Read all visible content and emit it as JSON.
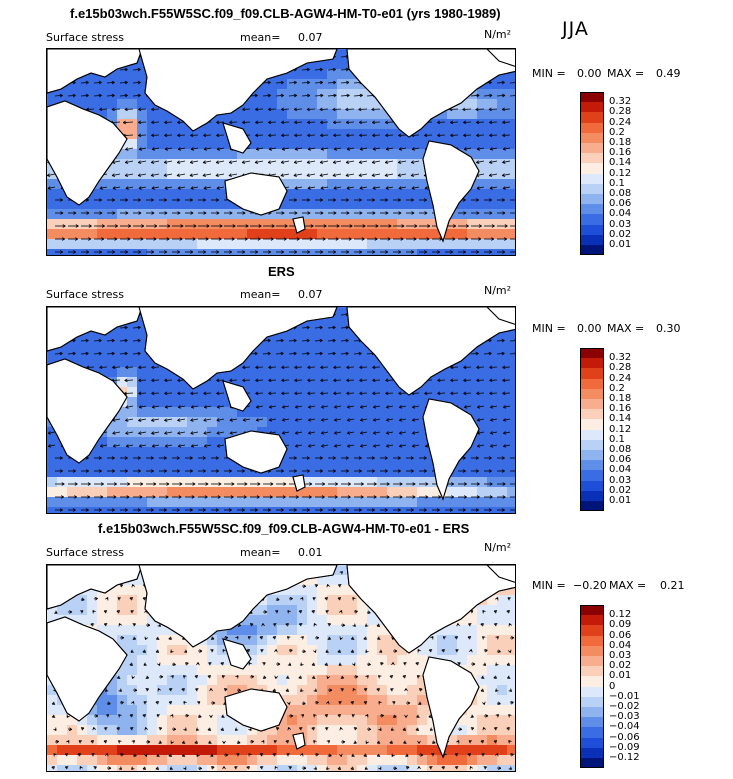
{
  "season": "JJA",
  "colors": {
    "ocean_low": "#1a3fd6",
    "ocean_high": "#cc2a10",
    "land": "#ffffff",
    "coast": "#000000"
  },
  "panels": [
    {
      "title": "f.e15b03wch.F55W5SC.f09_f09.CLB-AGW4-HM-T0-e01 (yrs 1980-1989)",
      "variable": "Surface stress",
      "mean_label": "mean=",
      "mean_value": "0.07",
      "units": "N/m²",
      "min_label": "MIN =",
      "min_value": "0.00",
      "max_label": "MAX =",
      "max_value": "0.49",
      "levels": [
        "0.32",
        "0.28",
        "0.24",
        "0.2",
        "0.18",
        "0.16",
        "0.14",
        "0.12",
        "0.1",
        "0.08",
        "0.06",
        "0.04",
        "0.03",
        "0.02",
        "0.01"
      ],
      "colors": [
        "#8b0000",
        "#c41a0a",
        "#e0401a",
        "#f06a3c",
        "#f48c62",
        "#f7ad8e",
        "#fad0ba",
        "#fdeee4",
        "#dde9fa",
        "#b9d1f5",
        "#8fb3ef",
        "#5f8ee8",
        "#3a6ce3",
        "#1f4fd8",
        "#0a30b8",
        "#00157a"
      ]
    },
    {
      "title": "ERS",
      "variable": "Surface stress",
      "mean_label": "mean=",
      "mean_value": "0.07",
      "units": "N/m²",
      "min_label": "MIN =",
      "min_value": "0.00",
      "max_label": "MAX =",
      "max_value": "0.30",
      "levels": [
        "0.32",
        "0.28",
        "0.24",
        "0.2",
        "0.18",
        "0.16",
        "0.14",
        "0.12",
        "0.1",
        "0.08",
        "0.06",
        "0.04",
        "0.03",
        "0.02",
        "0.01"
      ],
      "colors": [
        "#8b0000",
        "#c41a0a",
        "#e0401a",
        "#f06a3c",
        "#f48c62",
        "#f7ad8e",
        "#fad0ba",
        "#fdeee4",
        "#dde9fa",
        "#b9d1f5",
        "#8fb3ef",
        "#5f8ee8",
        "#3a6ce3",
        "#1f4fd8",
        "#0a30b8",
        "#00157a"
      ]
    },
    {
      "title": "f.e15b03wch.F55W5SC.f09_f09.CLB-AGW4-HM-T0-e01 - ERS",
      "variable": "Surface stress",
      "mean_label": "mean=",
      "mean_value": "0.01",
      "units": "N/m²",
      "min_label": "MIN =",
      "min_value": "−0.20",
      "max_label": "MAX =",
      "max_value": "0.21",
      "levels": [
        "0.12",
        "0.09",
        "0.06",
        "0.04",
        "0.03",
        "0.02",
        "0.01",
        "0",
        "−0.01",
        "−0.02",
        "−0.03",
        "−0.04",
        "−0.06",
        "−0.09",
        "−0.12"
      ],
      "colors": [
        "#8b0000",
        "#c41a0a",
        "#e0401a",
        "#f06a3c",
        "#f48c62",
        "#f7ad8e",
        "#fad0ba",
        "#fdeee4",
        "#dde9fa",
        "#b9d1f5",
        "#8fb3ef",
        "#5f8ee8",
        "#3a6ce3",
        "#1f4fd8",
        "#0a30b8",
        "#00157a"
      ]
    }
  ],
  "chart_data": [
    {
      "type": "heatmap",
      "title": "f.e15b03wch.F55W5SC.f09_f09.CLB-AGW4-HM-T0-e01 (yrs 1980-1989)",
      "subtitle": "Surface stress",
      "units": "N/m²",
      "mean": 0.07,
      "min": 0.0,
      "max": 0.49,
      "colorbar_levels": [
        0.01,
        0.02,
        0.03,
        0.04,
        0.06,
        0.08,
        0.1,
        0.12,
        0.14,
        0.16,
        0.18,
        0.2,
        0.24,
        0.28,
        0.32
      ],
      "overlay": "wind stress vectors"
    },
    {
      "type": "heatmap",
      "title": "ERS",
      "subtitle": "Surface stress",
      "units": "N/m²",
      "mean": 0.07,
      "min": 0.0,
      "max": 0.3,
      "colorbar_levels": [
        0.01,
        0.02,
        0.03,
        0.04,
        0.06,
        0.08,
        0.1,
        0.12,
        0.14,
        0.16,
        0.18,
        0.2,
        0.24,
        0.28,
        0.32
      ],
      "overlay": "wind stress vectors"
    },
    {
      "type": "heatmap",
      "title": "f.e15b03wch.F55W5SC.f09_f09.CLB-AGW4-HM-T0-e01 - ERS",
      "subtitle": "Surface stress",
      "units": "N/m²",
      "mean": 0.01,
      "min": -0.2,
      "max": 0.21,
      "colorbar_levels": [
        -0.12,
        -0.09,
        -0.06,
        -0.04,
        -0.03,
        -0.02,
        -0.01,
        0,
        0.01,
        0.02,
        0.03,
        0.04,
        0.06,
        0.09,
        0.12
      ],
      "overlay": "wind stress difference vectors"
    }
  ]
}
